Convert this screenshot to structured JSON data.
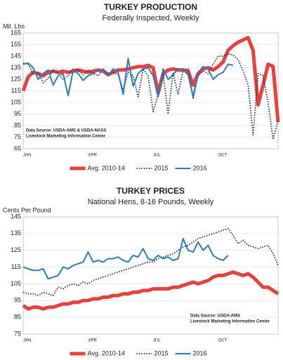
{
  "chart_data": [
    {
      "type": "line",
      "title": "TURKEY PRODUCTION",
      "subtitle": "Federally Inspected, Weekly",
      "ylabel": "Mil. Lbs",
      "categories": [
        "JAN",
        null,
        null,
        null,
        null,
        null,
        null,
        null,
        null,
        null,
        null,
        null,
        null,
        "APR",
        null,
        null,
        null,
        null,
        null,
        null,
        null,
        null,
        null,
        null,
        null,
        null,
        "JUL",
        null,
        null,
        null,
        null,
        null,
        null,
        null,
        null,
        null,
        null,
        null,
        null,
        "OCT",
        null,
        null,
        null,
        null,
        null,
        null,
        null,
        null,
        null,
        null,
        null,
        null
      ],
      "series": [
        {
          "name": "Avg. 2010-14",
          "color": "#e8403c",
          "line_style": "thick",
          "values": [
            115,
            127,
            131,
            130,
            128,
            131,
            132,
            131,
            132,
            131,
            132,
            133,
            132,
            131,
            132,
            133,
            132,
            129,
            131,
            133,
            133,
            134,
            135,
            136,
            136,
            137,
            135,
            113,
            130,
            133,
            134,
            133,
            133,
            132,
            120,
            130,
            134,
            135,
            133,
            136,
            140,
            150,
            154,
            157,
            159,
            161,
            150,
            103,
            120,
            138,
            136,
            88
          ]
        },
        {
          "name": "2015",
          "color": "#1f2f5c",
          "line_style": "dotted",
          "values": [
            139,
            138,
            130,
            131,
            122,
            126,
            133,
            130,
            125,
            128,
            134,
            133,
            129,
            133,
            130,
            128,
            134,
            130,
            131,
            129,
            116,
            131,
            128,
            110,
            134,
            128,
            97,
            112,
            130,
            95,
            131,
            112,
            133,
            134,
            108,
            128,
            132,
            130,
            138,
            145,
            145,
            147,
            146,
            142,
            132,
            120,
            77,
            130,
            128,
            105,
            73,
            90
          ]
        },
        {
          "name": "2016",
          "color": "#2c7bbd",
          "line_style": "solid",
          "values": [
            138,
            139,
            135,
            125,
            130,
            133,
            120,
            128,
            130,
            111,
            133,
            130,
            124,
            128,
            130,
            133,
            132,
            128,
            134,
            131,
            112,
            143,
            119,
            130,
            134,
            135,
            128,
            110,
            134,
            125,
            129,
            134,
            133,
            129,
            110,
            131,
            136,
            134,
            125,
            129,
            131,
            138,
            137,
            null,
            null,
            null,
            null,
            null,
            null,
            null,
            null,
            null
          ]
        }
      ],
      "ylim": [
        65,
        165
      ],
      "yticks": [
        65,
        75,
        85,
        95,
        105,
        115,
        125,
        135,
        145,
        155,
        165
      ],
      "grid": true,
      "annotations": [
        "Data Source:  USDA-AMS & USDA-NASS",
        "Livestock Marketing Information Center"
      ],
      "annotation_corner": "lower left",
      "legend": "bottom"
    },
    {
      "type": "line",
      "title": "TURKEY PRICES",
      "subtitle": "National Hens, 8-16 Pounds, Weekly",
      "ylabel": "Cents Per Pound",
      "categories": [
        "JAN",
        null,
        null,
        null,
        null,
        null,
        null,
        null,
        null,
        null,
        null,
        null,
        null,
        "APR",
        null,
        null,
        null,
        null,
        null,
        null,
        null,
        null,
        null,
        null,
        null,
        null,
        "JUL",
        null,
        null,
        null,
        null,
        null,
        null,
        null,
        null,
        null,
        null,
        null,
        null,
        "OCT",
        null,
        null,
        null,
        null,
        null,
        null,
        null,
        null,
        null,
        null,
        null,
        null
      ],
      "series": [
        {
          "name": "Avg. 2010-14",
          "color": "#e8403c",
          "line_style": "thick",
          "values": [
            92,
            90,
            91,
            91,
            90,
            91,
            91,
            92,
            93,
            93,
            94,
            94,
            95,
            95,
            96,
            96,
            97,
            97,
            98,
            98,
            99,
            99,
            100,
            100,
            101,
            101,
            102,
            102,
            102,
            102,
            103,
            103,
            104,
            105,
            106,
            105,
            106,
            107,
            109,
            110,
            110,
            111,
            112,
            111,
            110,
            111,
            109,
            106,
            103,
            103,
            101,
            99
          ]
        },
        {
          "name": "2015",
          "color": "#1f2f5c",
          "line_style": "dotted",
          "values": [
            100,
            99,
            99,
            98,
            100,
            99,
            98,
            103,
            102,
            104,
            105,
            104,
            106,
            105,
            107,
            108,
            109,
            110,
            111,
            112,
            113,
            114,
            115,
            116,
            117,
            118,
            118,
            120,
            121,
            122,
            123,
            125,
            127,
            128,
            130,
            132,
            133,
            134,
            135,
            136,
            137,
            138,
            134,
            129,
            131,
            128,
            127,
            126,
            127,
            128,
            123,
            116
          ]
        },
        {
          "name": "2016",
          "color": "#2c7bbd",
          "line_style": "solid",
          "values": [
            115,
            114,
            113,
            113,
            114,
            108,
            109,
            110,
            115,
            114,
            116,
            117,
            118,
            124,
            118,
            119,
            118,
            120,
            120,
            121,
            119,
            118,
            122,
            121,
            126,
            120,
            119,
            122,
            120,
            121,
            119,
            120,
            132,
            125,
            124,
            130,
            125,
            128,
            122,
            120,
            119,
            122,
            null,
            null,
            null,
            null,
            null,
            null,
            null,
            null,
            null,
            null
          ]
        }
      ],
      "ylim": [
        75,
        145
      ],
      "yticks": [
        75,
        85,
        95,
        105,
        115,
        125,
        135,
        145
      ],
      "grid": true,
      "annotations": [
        "Data Source:  USDA-AMS",
        "Livestock Marketing Information Center"
      ],
      "annotation_corner": "lower right",
      "legend": "bottom"
    }
  ]
}
